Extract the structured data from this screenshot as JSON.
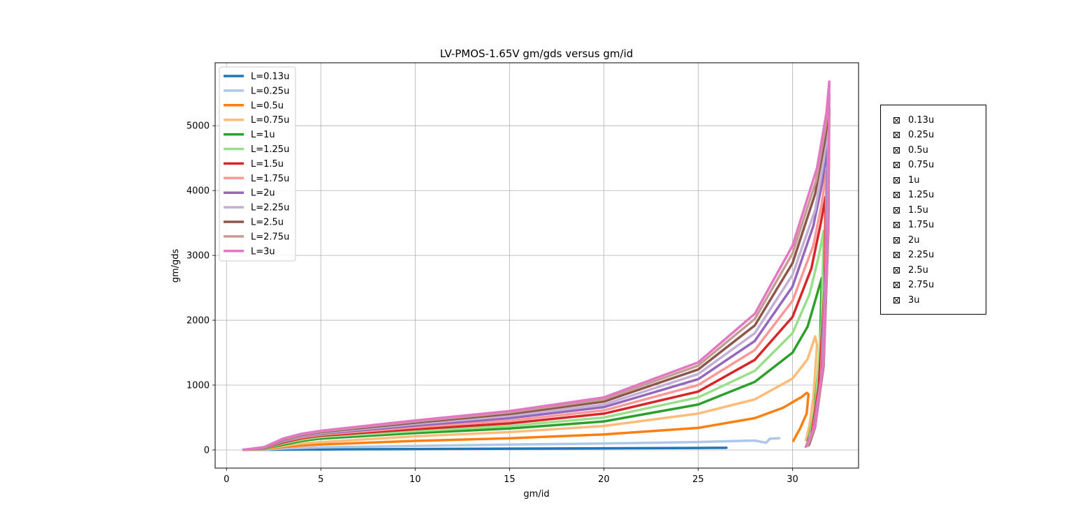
{
  "chart_data": {
    "type": "line",
    "title": "LV-PMOS-1.65V gm/gds versus gm/id",
    "xlabel": "gm/id",
    "ylabel": "gm/gds",
    "xlim": [
      -0.6,
      33.5
    ],
    "ylim": [
      -280,
      5970
    ],
    "xticks": [
      0,
      5,
      10,
      15,
      20,
      25,
      30
    ],
    "yticks": [
      0,
      1000,
      2000,
      3000,
      4000,
      5000
    ],
    "grid": true,
    "legend_position": "upper left",
    "series": [
      {
        "name": "L=0.13u",
        "color": "#1f77b4",
        "x": [
          0.9,
          2,
          5,
          10,
          15,
          20,
          25,
          26.5
        ],
        "y": [
          2,
          3,
          8,
          14,
          20,
          25,
          31,
          33
        ]
      },
      {
        "name": "L=0.25u",
        "color": "#aec7e8",
        "x": [
          0.9,
          2,
          3,
          5,
          10,
          15,
          20,
          25,
          28,
          28.6,
          28.8,
          29.3
        ],
        "y": [
          2,
          5,
          22,
          40,
          62,
          82,
          100,
          122,
          145,
          110,
          175,
          180
        ]
      },
      {
        "name": "L=0.5u",
        "color": "#ff7f0e",
        "x": [
          0.9,
          2,
          3,
          4,
          5,
          10,
          15,
          20,
          25,
          28,
          29.5,
          30.5,
          30.75,
          30.85,
          30.75,
          30.4,
          30.15,
          30.05
        ],
        "y": [
          2,
          12,
          45,
          70,
          85,
          140,
          180,
          240,
          340,
          490,
          650,
          820,
          880,
          860,
          560,
          330,
          200,
          140
        ]
      },
      {
        "name": "L=0.75u",
        "color": "#ffbb78",
        "x": [
          0.9,
          2,
          3,
          4,
          5,
          10,
          15,
          20,
          25,
          28,
          30,
          30.8,
          31.2,
          31.3,
          31.1,
          30.9,
          30.75,
          30.7
        ],
        "y": [
          2,
          15,
          60,
          100,
          120,
          210,
          275,
          370,
          560,
          780,
          1100,
          1400,
          1750,
          1620,
          800,
          380,
          190,
          150
        ]
      },
      {
        "name": "L=1u",
        "color": "#2ca02c",
        "x": [
          0.9,
          2,
          3,
          4,
          5,
          10,
          15,
          20,
          25,
          28,
          30,
          30.8,
          31.3,
          31.55,
          31.45,
          31.15,
          30.9,
          30.8
        ],
        "y": [
          2,
          20,
          80,
          140,
          175,
          260,
          330,
          440,
          700,
          1050,
          1500,
          1900,
          2400,
          2650,
          1500,
          600,
          230,
          130
        ]
      },
      {
        "name": "L=1.25u",
        "color": "#98df8a",
        "x": [
          0.9,
          2,
          3,
          4,
          5,
          10,
          15,
          20,
          25,
          28,
          30,
          30.9,
          31.4,
          31.65,
          31.55,
          31.25,
          30.95,
          30.85
        ],
        "y": [
          2,
          25,
          100,
          160,
          200,
          290,
          370,
          500,
          810,
          1220,
          1800,
          2400,
          3000,
          3380,
          2000,
          800,
          270,
          120
        ]
      },
      {
        "name": "L=1.5u",
        "color": "#d62728",
        "x": [
          0.9,
          2,
          3,
          4,
          5,
          10,
          15,
          20,
          25,
          28,
          30,
          31.0,
          31.5,
          31.75,
          31.7,
          31.4,
          31.05,
          30.9
        ],
        "y": [
          2,
          30,
          115,
          180,
          220,
          320,
          410,
          560,
          900,
          1390,
          2050,
          2800,
          3500,
          3900,
          2500,
          1000,
          320,
          110
        ]
      },
      {
        "name": "L=1.75u",
        "color": "#ff9896",
        "x": [
          0.9,
          2,
          3,
          4,
          5,
          10,
          15,
          20,
          25,
          28,
          30,
          31.1,
          31.55,
          31.8,
          31.75,
          31.5,
          31.1,
          30.9
        ],
        "y": [
          2,
          33,
          130,
          195,
          235,
          350,
          450,
          610,
          1000,
          1540,
          2300,
          3150,
          3800,
          4300,
          2800,
          1100,
          330,
          100
        ]
      },
      {
        "name": "L=2u",
        "color": "#9467bd",
        "x": [
          0.9,
          2,
          3,
          4,
          5,
          10,
          15,
          20,
          25,
          28,
          30,
          31.1,
          31.6,
          31.85,
          31.8,
          31.55,
          31.15,
          30.9
        ],
        "y": [
          2,
          35,
          140,
          210,
          250,
          375,
          490,
          660,
          1090,
          1680,
          2520,
          3450,
          4150,
          4700,
          3000,
          1200,
          340,
          90
        ]
      },
      {
        "name": "L=2.25u",
        "color": "#c5b0d5",
        "x": [
          0.9,
          2,
          3,
          4,
          5,
          10,
          15,
          20,
          25,
          28,
          30,
          31.2,
          31.65,
          31.9,
          31.85,
          31.6,
          31.2,
          30.9
        ],
        "y": [
          2,
          38,
          150,
          220,
          262,
          400,
          525,
          700,
          1170,
          1800,
          2700,
          3700,
          4450,
          5000,
          3200,
          1250,
          350,
          80
        ]
      },
      {
        "name": "L=2.5u",
        "color": "#8c564b",
        "x": [
          0.9,
          2,
          3,
          4,
          5,
          10,
          15,
          20,
          25,
          28,
          30,
          31.2,
          31.7,
          31.95,
          31.9,
          31.65,
          31.2,
          30.85
        ],
        "y": [
          2,
          40,
          160,
          232,
          275,
          420,
          555,
          745,
          1240,
          1920,
          2880,
          3950,
          4750,
          5270,
          3400,
          1300,
          360,
          70
        ]
      },
      {
        "name": "L=2.75u",
        "color": "#c49c94",
        "x": [
          0.9,
          2,
          3,
          4,
          5,
          10,
          15,
          20,
          25,
          28,
          30,
          31.25,
          31.75,
          31.95,
          31.9,
          31.65,
          31.2,
          30.8
        ],
        "y": [
          2,
          42,
          168,
          240,
          285,
          440,
          580,
          780,
          1300,
          2020,
          3030,
          4150,
          4980,
          5480,
          3500,
          1350,
          370,
          60
        ]
      },
      {
        "name": "L=3u",
        "color": "#e377c2",
        "x": [
          0.9,
          2,
          3,
          4,
          5,
          10,
          15,
          20,
          25,
          28,
          30,
          31.3,
          31.8,
          31.95,
          31.9,
          31.65,
          31.2,
          30.7
        ],
        "y": [
          2,
          44,
          175,
          250,
          295,
          455,
          600,
          810,
          1350,
          2100,
          3150,
          4350,
          5200,
          5680,
          3600,
          1400,
          380,
          50
        ]
      }
    ]
  },
  "side_panel": {
    "items": [
      "0.13u",
      "0.25u",
      "0.5u",
      "0.75u",
      "1u",
      "1.25u",
      "1.5u",
      "1.75u",
      "2u",
      "2.25u",
      "2.5u",
      "2.75u",
      "3u"
    ]
  }
}
